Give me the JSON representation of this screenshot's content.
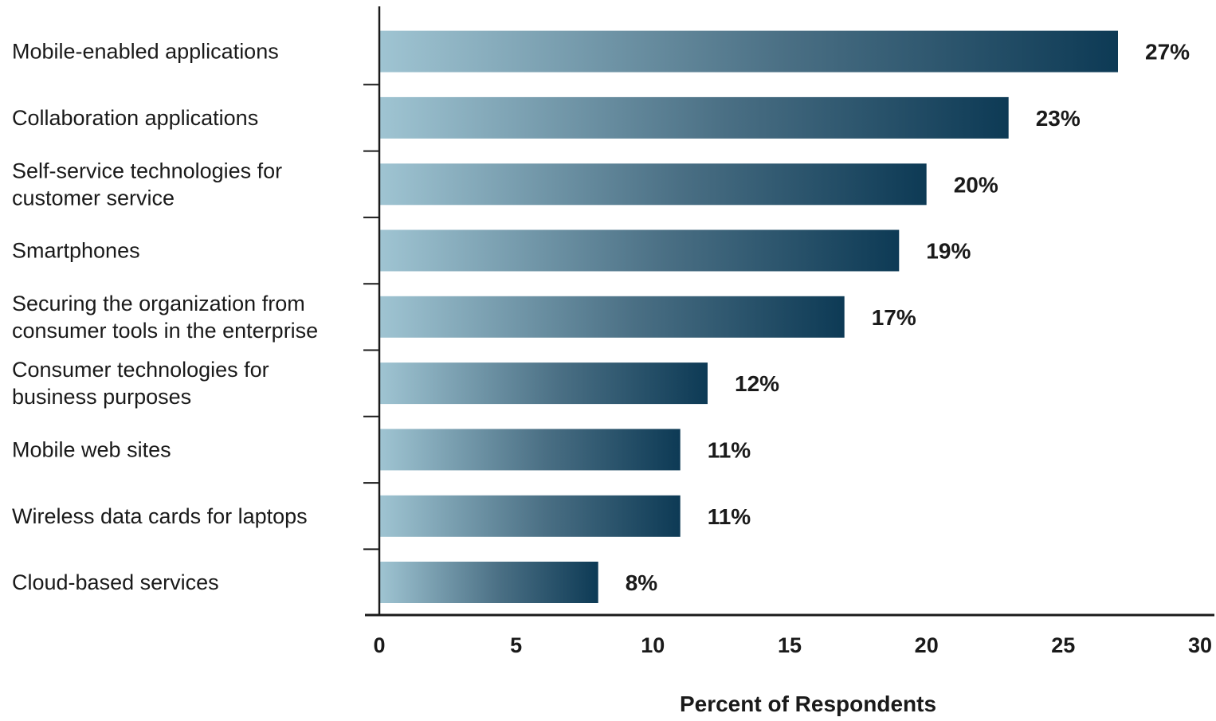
{
  "chart_data": {
    "type": "bar",
    "orientation": "horizontal",
    "categories": [
      "Mobile-enabled applications",
      "Collaboration applications",
      "Self-service technologies for customer service",
      "Smartphones",
      "Securing the organization from consumer tools in the enterprise",
      "Consumer technologies for business purposes",
      "Mobile web sites",
      "Wireless data cards for laptops",
      "Cloud-based services"
    ],
    "category_lines": [
      [
        "Mobile-enabled applications"
      ],
      [
        "Collaboration applications"
      ],
      [
        "Self-service technologies for",
        "customer service"
      ],
      [
        "Smartphones"
      ],
      [
        "Securing the organization from",
        "consumer tools in the enterprise"
      ],
      [
        "Consumer technologies for",
        "business purposes"
      ],
      [
        "Mobile web sites"
      ],
      [
        "Wireless data cards for laptops"
      ],
      [
        "Cloud-based services"
      ]
    ],
    "values": [
      27,
      23,
      20,
      19,
      17,
      12,
      11,
      11,
      8
    ],
    "value_labels": [
      "27%",
      "23%",
      "20%",
      "19%",
      "17%",
      "12%",
      "11%",
      "11%",
      "8%"
    ],
    "xlabel": "Percent of Respondents",
    "xlim": [
      0,
      30
    ],
    "xticks": [
      0,
      5,
      10,
      15,
      20,
      25,
      30
    ],
    "grid": false,
    "legend": "none",
    "colors": {
      "bar_start": "#9fc4d2",
      "bar_mid": "#4a6f84",
      "bar_end": "#0d3a55",
      "axis": "#1a1a1a",
      "text": "#1a1a1a"
    }
  }
}
